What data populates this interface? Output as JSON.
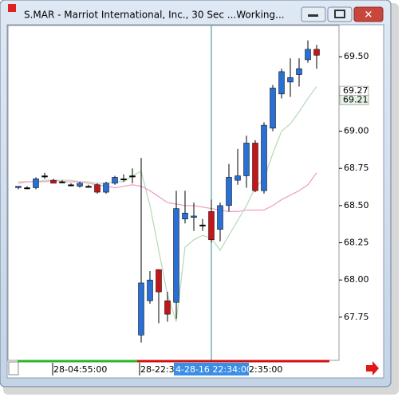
{
  "window": {
    "title": "S.MAR - Marriot International, Inc., 30 Sec ...Working..."
  },
  "chart_data": {
    "type": "candlestick",
    "up_color": "#2a6fd4",
    "down_color": "#c0161c",
    "open": [
      68.62,
      68.62,
      68.62,
      68.7,
      68.67,
      68.66,
      68.64,
      68.63,
      68.63,
      68.64,
      68.59,
      68.65,
      68.68,
      68.7,
      67.63,
      67.86,
      68.07,
      67.86,
      67.85,
      68.41,
      68.42,
      68.37,
      68.46,
      68.34,
      68.5,
      68.67,
      68.7,
      68.92,
      68.6,
      69.02,
      69.25,
      69.33,
      69.38,
      69.48,
      69.55
    ],
    "high": [
      68.63,
      68.63,
      68.69,
      68.72,
      68.68,
      68.67,
      68.65,
      68.66,
      68.64,
      68.65,
      68.66,
      68.7,
      68.71,
      68.75,
      68.82,
      68.06,
      68.07,
      67.92,
      68.6,
      68.6,
      68.52,
      68.41,
      68.54,
      68.52,
      68.78,
      68.88,
      68.97,
      68.94,
      69.06,
      69.31,
      69.42,
      69.49,
      69.49,
      69.61,
      69.58
    ],
    "low": [
      68.61,
      68.61,
      68.61,
      68.68,
      68.65,
      68.65,
      68.63,
      68.62,
      68.62,
      68.58,
      68.58,
      68.64,
      68.66,
      68.65,
      67.58,
      67.84,
      67.71,
      67.72,
      67.74,
      68.38,
      68.33,
      68.33,
      68.25,
      68.26,
      68.46,
      68.64,
      68.62,
      68.59,
      68.58,
      69.0,
      69.22,
      69.23,
      69.3,
      69.46,
      69.42
    ],
    "close": [
      68.63,
      68.62,
      68.68,
      68.7,
      68.65,
      68.66,
      68.64,
      68.65,
      68.63,
      68.59,
      68.65,
      68.69,
      68.68,
      68.7,
      67.98,
      68.0,
      67.92,
      67.77,
      68.48,
      68.45,
      68.43,
      68.37,
      68.27,
      68.5,
      68.69,
      68.7,
      68.92,
      68.6,
      69.04,
      69.29,
      69.4,
      69.36,
      69.42,
      69.55,
      69.51
    ],
    "series": [
      {
        "color": "#b9dcb9",
        "values": [
          68.66,
          68.66,
          68.66,
          68.67,
          68.67,
          68.67,
          68.67,
          68.66,
          68.66,
          68.65,
          68.65,
          68.66,
          68.66,
          68.7,
          68.73,
          68.5,
          68.2,
          67.9,
          67.72,
          68.22,
          68.27,
          68.3,
          68.28,
          68.2,
          68.3,
          68.4,
          68.5,
          68.62,
          68.68,
          68.85,
          69.0,
          69.05,
          69.13,
          69.22,
          69.3
        ]
      },
      {
        "color": "#f0a0c8",
        "values": [
          68.65,
          68.66,
          68.66,
          68.66,
          68.67,
          68.66,
          68.66,
          68.66,
          68.65,
          68.64,
          68.63,
          68.62,
          68.63,
          68.64,
          68.63,
          68.6,
          68.56,
          68.52,
          68.51,
          68.5,
          68.5,
          68.49,
          68.48,
          68.47,
          68.46,
          68.46,
          68.47,
          68.47,
          68.47,
          68.5,
          68.54,
          68.57,
          68.6,
          68.64,
          68.72
        ]
      }
    ],
    "ylim": [
      67.46,
      69.71
    ],
    "yticks": [
      {
        "value": 67.75,
        "label": "67.75"
      },
      {
        "value": 68,
        "label": "68.00"
      },
      {
        "value": 68.25,
        "label": "68.25"
      },
      {
        "value": 68.5,
        "label": "68.50"
      },
      {
        "value": 68.75,
        "label": "68.75"
      },
      {
        "value": 69,
        "label": "69.00"
      },
      {
        "value": 69.5,
        "label": "69.50"
      }
    ],
    "price_markers": [
      {
        "value": 69.27,
        "label": "69.27"
      },
      {
        "value": 69.21,
        "label": "69.21"
      }
    ],
    "time_labels": [
      "28-04:55:00",
      "28-22:3",
      "4-28-16 22:34:00",
      "2:35:00"
    ]
  }
}
